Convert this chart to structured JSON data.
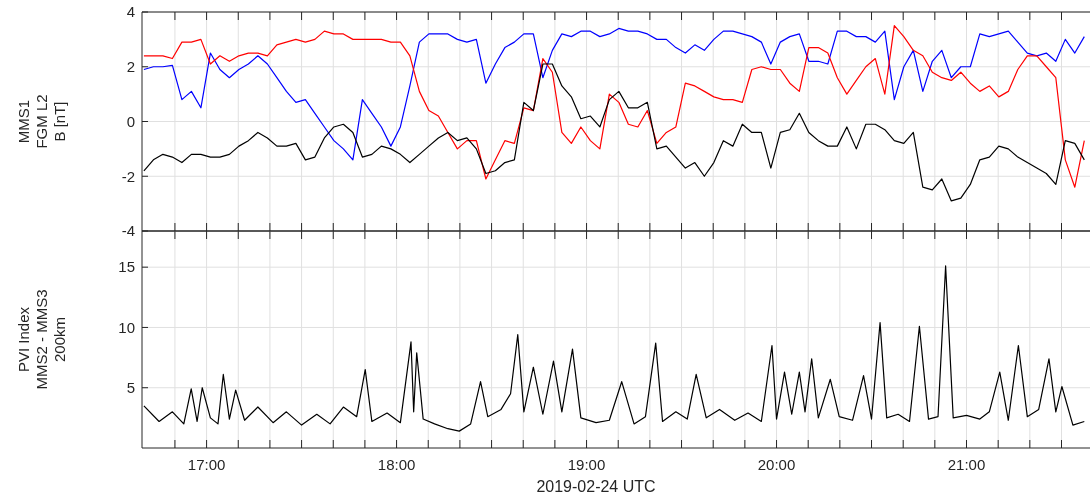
{
  "chart_data": [
    {
      "type": "line",
      "ylabel": "MMS1\nFGM L2\nB [nT]",
      "xlim": [
        16.66,
        21.65
      ],
      "ylim": [
        -4,
        4
      ],
      "yticks": [
        -4,
        -2,
        0,
        2,
        4
      ],
      "tick_labels": "y",
      "grid": true,
      "xticks": [
        {
          "value": 16.8333,
          "label": null
        },
        {
          "value": 17,
          "label": null
        },
        {
          "value": 17.1667,
          "label": null
        },
        {
          "value": 17.3333,
          "label": null
        },
        {
          "value": 17.5,
          "label": null
        },
        {
          "value": 17.6667,
          "label": null
        },
        {
          "value": 17.8333,
          "label": null
        },
        {
          "value": 18,
          "label": null
        },
        {
          "value": 18.1667,
          "label": null
        },
        {
          "value": 18.3333,
          "label": null
        },
        {
          "value": 18.5,
          "label": null
        },
        {
          "value": 18.6667,
          "label": null
        },
        {
          "value": 18.8333,
          "label": null
        },
        {
          "value": 19,
          "label": null
        },
        {
          "value": 19.1667,
          "label": null
        },
        {
          "value": 19.3333,
          "label": null
        },
        {
          "value": 19.5,
          "label": null
        },
        {
          "value": 19.6667,
          "label": null
        },
        {
          "value": 19.8333,
          "label": null
        },
        {
          "value": 20,
          "label": null
        },
        {
          "value": 20.1667,
          "label": null
        },
        {
          "value": 20.3333,
          "label": null
        },
        {
          "value": 20.5,
          "label": null
        },
        {
          "value": 20.6667,
          "label": null
        },
        {
          "value": 20.8333,
          "label": null
        },
        {
          "value": 21,
          "label": null
        },
        {
          "value": 21.1667,
          "label": null
        },
        {
          "value": 21.3333,
          "label": null
        },
        {
          "value": 21.5,
          "label": null
        }
      ],
      "x": [
        16.67,
        16.72,
        16.77,
        16.82,
        16.87,
        16.92,
        16.97,
        17.02,
        17.07,
        17.12,
        17.17,
        17.22,
        17.27,
        17.32,
        17.37,
        17.42,
        17.47,
        17.52,
        17.57,
        17.62,
        17.67,
        17.72,
        17.77,
        17.82,
        17.87,
        17.92,
        17.97,
        18.02,
        18.07,
        18.12,
        18.17,
        18.22,
        18.27,
        18.32,
        18.37,
        18.42,
        18.47,
        18.52,
        18.57,
        18.62,
        18.67,
        18.72,
        18.77,
        18.82,
        18.87,
        18.92,
        18.97,
        19.02,
        19.07,
        19.12,
        19.17,
        19.22,
        19.27,
        19.32,
        19.37,
        19.42,
        19.47,
        19.52,
        19.57,
        19.62,
        19.67,
        19.72,
        19.77,
        19.82,
        19.87,
        19.92,
        19.97,
        20.02,
        20.07,
        20.12,
        20.17,
        20.22,
        20.27,
        20.32,
        20.37,
        20.42,
        20.47,
        20.52,
        20.57,
        20.62,
        20.67,
        20.72,
        20.77,
        20.82,
        20.87,
        20.92,
        20.97,
        21.02,
        21.07,
        21.12,
        21.17,
        21.22,
        21.27,
        21.32,
        21.37,
        21.42,
        21.47,
        21.52,
        21.57,
        21.62
      ],
      "series": [
        {
          "color": "#0000ff",
          "values": [
            1.9,
            2.0,
            2.0,
            2.05,
            0.8,
            1.1,
            0.5,
            2.5,
            1.9,
            1.6,
            1.9,
            2.1,
            2.4,
            2.1,
            1.6,
            1.1,
            0.7,
            0.8,
            0.3,
            -0.2,
            -0.7,
            -1.0,
            -1.4,
            0.8,
            0.3,
            -0.2,
            -0.9,
            -0.2,
            1.3,
            2.9,
            3.2,
            3.2,
            3.2,
            3.0,
            2.9,
            3.0,
            1.4,
            2.1,
            2.7,
            2.9,
            3.2,
            3.2,
            1.6,
            2.6,
            3.2,
            3.1,
            3.3,
            3.3,
            3.1,
            3.2,
            3.4,
            3.3,
            3.3,
            3.2,
            3.0,
            3.0,
            2.7,
            2.5,
            2.8,
            2.6,
            3.0,
            3.3,
            3.3,
            3.2,
            3.1,
            2.9,
            2.1,
            2.9,
            3.1,
            3.2,
            2.2,
            2.2,
            2.1,
            3.3,
            3.3,
            3.1,
            3.1,
            2.9,
            3.3,
            0.8,
            2.0,
            2.6,
            1.1,
            2.2,
            2.6,
            1.6,
            2.0,
            2.0,
            3.2,
            3.1,
            3.2,
            3.3,
            2.9,
            2.5,
            2.4,
            2.5,
            2.2,
            3.0,
            2.5,
            3.1
          ]
        },
        {
          "color": "#ff0000",
          "values": [
            2.4,
            2.4,
            2.4,
            2.3,
            2.9,
            2.9,
            3.0,
            2.1,
            2.4,
            2.2,
            2.4,
            2.5,
            2.5,
            2.4,
            2.8,
            2.9,
            3.0,
            2.9,
            3.0,
            3.3,
            3.2,
            3.2,
            3.0,
            3.0,
            3.0,
            3.0,
            2.9,
            2.9,
            2.4,
            1.1,
            0.4,
            0.2,
            -0.4,
            -1.0,
            -0.7,
            -0.7,
            -2.1,
            -1.4,
            -0.7,
            -0.8,
            0.5,
            0.4,
            2.3,
            1.8,
            -0.4,
            -0.8,
            -0.2,
            -0.7,
            -1.0,
            1.0,
            0.7,
            -0.1,
            -0.2,
            0.4,
            -0.8,
            -0.4,
            -0.2,
            1.4,
            1.3,
            1.1,
            0.9,
            0.8,
            0.8,
            0.7,
            1.9,
            2.0,
            1.9,
            1.9,
            1.4,
            1.1,
            2.7,
            2.7,
            2.5,
            1.6,
            1.0,
            1.5,
            2.0,
            2.3,
            1.0,
            3.5,
            3.1,
            2.6,
            2.4,
            1.8,
            1.6,
            1.5,
            1.8,
            1.4,
            1.1,
            1.3,
            0.9,
            1.1,
            1.9,
            2.4,
            2.4,
            2.0,
            1.6,
            -1.4,
            -2.4,
            -0.7
          ]
        },
        {
          "color": "#000000",
          "values": [
            -1.8,
            -1.4,
            -1.2,
            -1.3,
            -1.5,
            -1.2,
            -1.2,
            -1.3,
            -1.3,
            -1.2,
            -0.9,
            -0.7,
            -0.4,
            -0.6,
            -0.9,
            -0.9,
            -0.8,
            -1.4,
            -1.3,
            -0.6,
            -0.2,
            -0.1,
            -0.4,
            -1.3,
            -1.2,
            -0.9,
            -1.0,
            -1.2,
            -1.5,
            -1.2,
            -0.9,
            -0.6,
            -0.4,
            -0.7,
            -0.6,
            -1.0,
            -1.9,
            -1.8,
            -1.5,
            -1.4,
            0.7,
            0.4,
            2.1,
            2.1,
            1.3,
            0.9,
            0.1,
            0.2,
            -0.2,
            0.8,
            1.1,
            0.5,
            0.5,
            0.7,
            -1.0,
            -0.9,
            -1.3,
            -1.7,
            -1.5,
            -2.0,
            -1.5,
            -0.7,
            -0.9,
            -0.1,
            -0.4,
            -0.4,
            -1.7,
            -0.4,
            -0.3,
            0.3,
            -0.4,
            -0.7,
            -0.9,
            -0.9,
            -0.2,
            -1.0,
            -0.1,
            -0.1,
            -0.3,
            -0.7,
            -0.8,
            -0.4,
            -2.4,
            -2.5,
            -2.1,
            -2.9,
            -2.8,
            -2.3,
            -1.4,
            -1.3,
            -0.9,
            -1.0,
            -1.3,
            -1.5,
            -1.7,
            -1.9,
            -2.3,
            -0.7,
            -0.8,
            -1.4
          ]
        }
      ]
    },
    {
      "type": "line",
      "ylabel": "PVI Index\nMMS2 - MMS3\n200km",
      "xlabel": "2019-02-24 UTC",
      "xlim": [
        16.66,
        21.65
      ],
      "ylim": [
        0,
        18
      ],
      "yticks": [
        5,
        10,
        15
      ],
      "grid": true,
      "xticks": [
        {
          "value": 16.8333,
          "label": null
        },
        {
          "value": 17,
          "label": "17:00"
        },
        {
          "value": 17.1667,
          "label": null
        },
        {
          "value": 17.3333,
          "label": null
        },
        {
          "value": 17.5,
          "label": null
        },
        {
          "value": 17.6667,
          "label": null
        },
        {
          "value": 17.8333,
          "label": null
        },
        {
          "value": 18,
          "label": "18:00"
        },
        {
          "value": 18.1667,
          "label": null
        },
        {
          "value": 18.3333,
          "label": null
        },
        {
          "value": 18.5,
          "label": null
        },
        {
          "value": 18.6667,
          "label": null
        },
        {
          "value": 18.8333,
          "label": null
        },
        {
          "value": 19,
          "label": "19:00"
        },
        {
          "value": 19.1667,
          "label": null
        },
        {
          "value": 19.3333,
          "label": null
        },
        {
          "value": 19.5,
          "label": null
        },
        {
          "value": 19.6667,
          "label": null
        },
        {
          "value": 19.8333,
          "label": null
        },
        {
          "value": 20,
          "label": "20:00"
        },
        {
          "value": 20.1667,
          "label": null
        },
        {
          "value": 20.3333,
          "label": null
        },
        {
          "value": 20.5,
          "label": null
        },
        {
          "value": 20.6667,
          "label": null
        },
        {
          "value": 20.8333,
          "label": null
        },
        {
          "value": 21,
          "label": "21:00"
        },
        {
          "value": 21.1667,
          "label": null
        },
        {
          "value": 21.3333,
          "label": null
        },
        {
          "value": 21.5,
          "label": null
        }
      ],
      "series": [
        {
          "color": "#000000",
          "x": [
            16.67,
            16.75,
            16.82,
            16.88,
            16.919,
            16.95,
            16.977,
            17.02,
            17.06,
            17.088,
            17.12,
            17.153,
            17.2,
            17.27,
            17.35,
            17.42,
            17.5,
            17.58,
            17.65,
            17.72,
            17.79,
            17.835,
            17.87,
            17.95,
            18.02,
            18.076,
            18.09,
            18.106,
            18.14,
            18.2,
            18.27,
            18.33,
            18.39,
            18.442,
            18.48,
            18.55,
            18.6,
            18.638,
            18.67,
            18.72,
            18.77,
            18.826,
            18.87,
            18.926,
            18.97,
            19.05,
            19.12,
            19.185,
            19.25,
            19.31,
            19.364,
            19.4,
            19.47,
            19.53,
            19.577,
            19.63,
            19.7,
            19.78,
            19.85,
            19.92,
            19.976,
            20.0,
            20.042,
            20.08,
            20.12,
            20.15,
            20.185,
            20.22,
            20.283,
            20.33,
            20.4,
            20.458,
            20.5,
            20.545,
            20.58,
            20.64,
            20.7,
            20.752,
            20.8,
            20.85,
            20.89,
            20.93,
            21.0,
            21.07,
            21.12,
            21.175,
            21.22,
            21.273,
            21.32,
            21.38,
            21.434,
            21.47,
            21.502,
            21.56,
            21.62
          ],
          "values": [
            3.5,
            2.2,
            3.0,
            2.0,
            4.9,
            2.2,
            5.0,
            2.5,
            2.0,
            6.1,
            2.4,
            4.8,
            2.3,
            3.4,
            2.1,
            3.0,
            1.9,
            2.8,
            2.0,
            3.4,
            2.6,
            6.5,
            2.2,
            2.9,
            2.1,
            8.8,
            3.0,
            7.9,
            2.4,
            2.0,
            1.6,
            1.4,
            2.0,
            5.5,
            2.6,
            3.2,
            4.5,
            9.4,
            3.0,
            6.7,
            2.8,
            7.2,
            3.0,
            8.2,
            2.5,
            2.1,
            2.3,
            5.5,
            2.0,
            2.6,
            8.7,
            2.2,
            3.0,
            2.4,
            6.1,
            2.5,
            3.2,
            2.3,
            2.9,
            2.2,
            8.5,
            2.4,
            6.3,
            2.8,
            6.3,
            3.0,
            7.4,
            2.5,
            5.7,
            2.6,
            2.3,
            6.0,
            2.4,
            10.4,
            2.5,
            2.8,
            2.2,
            10.1,
            2.4,
            2.6,
            15.1,
            2.5,
            2.7,
            2.4,
            3.0,
            6.3,
            2.3,
            8.5,
            2.6,
            3.2,
            7.4,
            3.0,
            5.1,
            1.9,
            2.2
          ]
        }
      ]
    }
  ]
}
